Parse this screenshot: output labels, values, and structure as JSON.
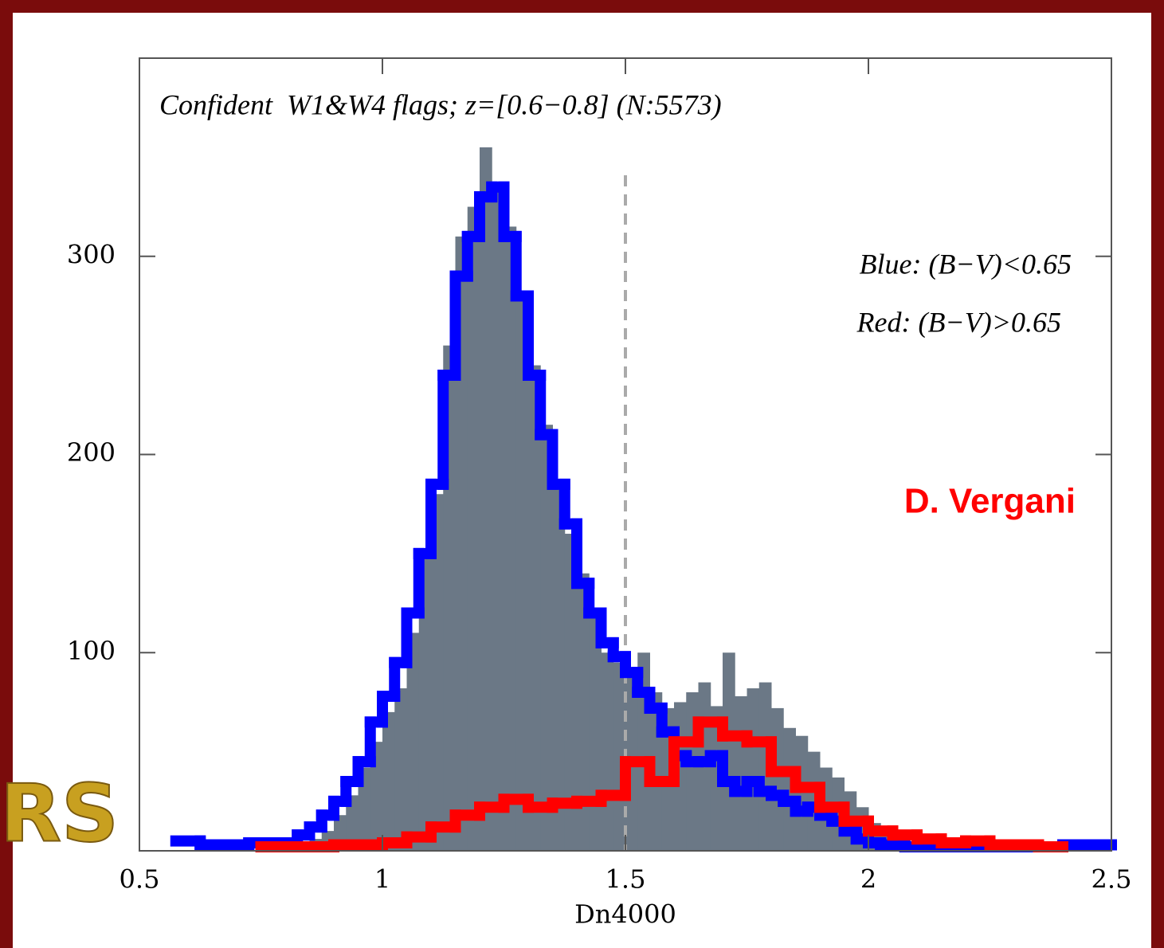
{
  "chart_data": {
    "type": "histogram",
    "title": "Confident  W1&W4 flags; z=[0.6−0.8] (N:5573)",
    "annotations": [
      "Blue: (B−V)<0.65",
      "Red: (B−V)>0.65",
      "D. Vergani"
    ],
    "logo": "RS",
    "xlabel": "Dn4000",
    "xlim": [
      0.5,
      2.5
    ],
    "xticks": [
      0.5,
      1,
      1.5,
      2,
      2.5
    ],
    "ylim": [
      0,
      400
    ],
    "yticks": [
      100,
      200,
      300
    ],
    "vline": 1.5,
    "color": "#6b7886",
    "bins": [
      0.8,
      0.825,
      0.85,
      0.875,
      0.9,
      0.925,
      0.95,
      0.975,
      1.0,
      1.025,
      1.05,
      1.075,
      1.1,
      1.125,
      1.15,
      1.175,
      1.2,
      1.225,
      1.25,
      1.275,
      1.3,
      1.325,
      1.35,
      1.375,
      1.4,
      1.425,
      1.45,
      1.475,
      1.5,
      1.525,
      1.55,
      1.575,
      1.6,
      1.625,
      1.65,
      1.675,
      1.7,
      1.725,
      1.75,
      1.775,
      1.8,
      1.825,
      1.85,
      1.875,
      1.9,
      1.925,
      1.95,
      1.975,
      2.0,
      2.025,
      2.05,
      2.075,
      2.1
    ],
    "counts": [
      2,
      3,
      6,
      10,
      18,
      28,
      42,
      55,
      70,
      82,
      110,
      150,
      180,
      255,
      310,
      325,
      355,
      335,
      315,
      280,
      245,
      215,
      185,
      160,
      140,
      120,
      100,
      95,
      90,
      100,
      80,
      72,
      75,
      80,
      85,
      73,
      100,
      78,
      82,
      85,
      72,
      62,
      58,
      50,
      42,
      37,
      30,
      22,
      14,
      8,
      4,
      2
    ],
    "series": [
      {
        "color": "#0000ff",
        "bins": [
          0.575,
          0.625,
          0.675,
          0.725,
          0.775,
          0.8,
          0.825,
          0.85,
          0.875,
          0.9,
          0.925,
          0.95,
          0.975,
          1.0,
          1.025,
          1.05,
          1.075,
          1.1,
          1.125,
          1.15,
          1.175,
          1.2,
          1.225,
          1.25,
          1.275,
          1.3,
          1.325,
          1.35,
          1.375,
          1.4,
          1.425,
          1.45,
          1.475,
          1.5,
          1.525,
          1.55,
          1.575,
          1.6,
          1.625,
          1.65,
          1.675,
          1.7,
          1.725,
          1.75,
          1.775,
          1.8,
          1.825,
          1.85,
          1.875,
          1.9,
          1.925,
          1.95,
          1.975,
          2.0,
          2.025,
          2.05,
          2.075,
          2.1,
          2.15,
          2.2,
          2.25,
          2.3,
          2.35,
          2.4,
          2.45,
          2.5
        ],
        "values": [
          5,
          3,
          3,
          4,
          4,
          4,
          8,
          12,
          18,
          25,
          35,
          45,
          65,
          78,
          95,
          120,
          150,
          185,
          240,
          290,
          310,
          330,
          335,
          310,
          280,
          240,
          210,
          185,
          165,
          135,
          120,
          105,
          98,
          90,
          80,
          72,
          60,
          48,
          45,
          45,
          48,
          35,
          30,
          35,
          30,
          28,
          25,
          20,
          22,
          18,
          15,
          10,
          6,
          4,
          3,
          3,
          2,
          2,
          2,
          2,
          2,
          2,
          2,
          3,
          3
        ]
      },
      {
        "color": "#ff0000",
        "bins": [
          0.75,
          0.8,
          0.85,
          0.9,
          0.95,
          1.0,
          1.05,
          1.1,
          1.15,
          1.2,
          1.25,
          1.3,
          1.35,
          1.4,
          1.45,
          1.5,
          1.55,
          1.6,
          1.65,
          1.7,
          1.75,
          1.8,
          1.85,
          1.9,
          1.95,
          2.0,
          2.05,
          2.1,
          2.15,
          2.2,
          2.25,
          2.3,
          2.35,
          2.4
        ],
        "values": [
          2,
          2,
          2,
          3,
          3,
          4,
          7,
          12,
          18,
          22,
          26,
          22,
          24,
          25,
          28,
          45,
          35,
          55,
          65,
          58,
          55,
          40,
          32,
          22,
          15,
          10,
          8,
          6,
          4,
          5,
          3,
          3,
          2
        ]
      }
    ]
  }
}
